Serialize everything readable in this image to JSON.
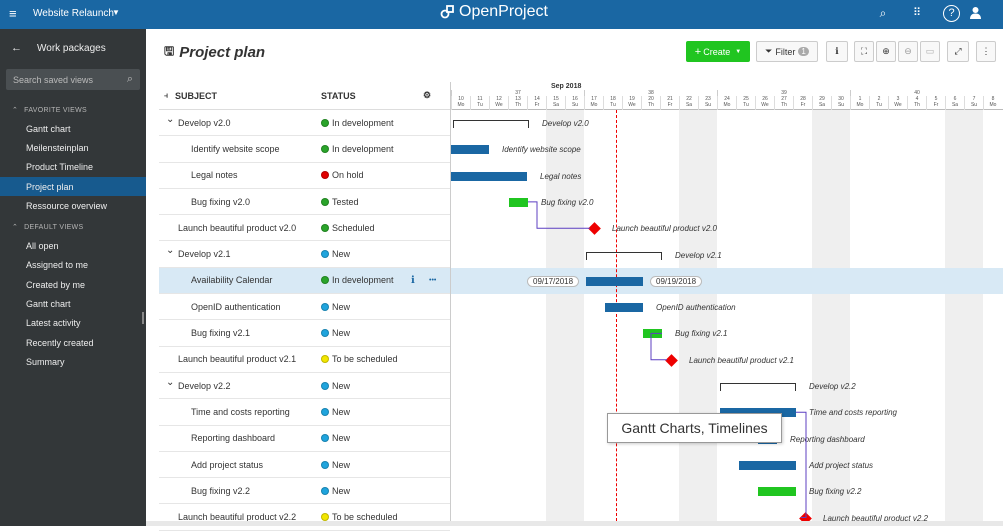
{
  "topbar": {
    "project": "Website Relaunch",
    "logo": "OpenProject",
    "icons": [
      "search-icon",
      "grid-icon",
      "help-icon",
      "user-icon"
    ]
  },
  "sidebar": {
    "back_label": "Work packages",
    "search_placeholder": "Search saved views",
    "favorite_title": "FAVORITE VIEWS",
    "favorites": [
      "Gantt chart",
      "Meilensteinplan",
      "Product Timeline",
      "Project plan",
      "Ressource overview"
    ],
    "default_title": "DEFAULT VIEWS",
    "defaults": [
      "All open",
      "Assigned to me",
      "Created by me",
      "Gantt chart",
      "Latest activity",
      "Recently created",
      "Summary"
    ]
  },
  "toolbar": {
    "title": "Project plan",
    "create": "Create",
    "filter": "Filter",
    "filter_count": "1"
  },
  "table": {
    "col_subject": "SUBJECT",
    "col_status": "STATUS",
    "rows": [
      {
        "subject": "Develop v2.0",
        "status": "In development",
        "color": "#2aa42a",
        "indent": 1,
        "collapsible": true
      },
      {
        "subject": "Identify website scope",
        "status": "In development",
        "color": "#2aa42a",
        "indent": 2
      },
      {
        "subject": "Legal notes",
        "status": "On hold",
        "color": "#e00000",
        "indent": 2
      },
      {
        "subject": "Bug fixing v2.0",
        "status": "Tested",
        "color": "#2aa42a",
        "indent": 2
      },
      {
        "subject": "Launch beautiful product v2.0",
        "status": "Scheduled",
        "color": "#2aa42a",
        "indent": 0
      },
      {
        "subject": "Develop v2.1",
        "status": "New",
        "color": "#1fa4dd",
        "indent": 1,
        "collapsible": true
      },
      {
        "subject": "Availability Calendar",
        "status": "In development",
        "color": "#2aa42a",
        "indent": 2,
        "selected": true
      },
      {
        "subject": "OpenID authentication",
        "status": "New",
        "color": "#1fa4dd",
        "indent": 2
      },
      {
        "subject": "Bug fixing v2.1",
        "status": "New",
        "color": "#1fa4dd",
        "indent": 2
      },
      {
        "subject": "Launch beautiful product v2.1",
        "status": "To be scheduled",
        "color": "#f2e600",
        "indent": 0
      },
      {
        "subject": "Develop v2.2",
        "status": "New",
        "color": "#1fa4dd",
        "indent": 1,
        "collapsible": true
      },
      {
        "subject": "Time and costs reporting",
        "status": "New",
        "color": "#1fa4dd",
        "indent": 2
      },
      {
        "subject": "Reporting dashboard",
        "status": "New",
        "color": "#1fa4dd",
        "indent": 2
      },
      {
        "subject": "Add project status",
        "status": "New",
        "color": "#1fa4dd",
        "indent": 2
      },
      {
        "subject": "Bug fixing v2.2",
        "status": "New",
        "color": "#1fa4dd",
        "indent": 2
      },
      {
        "subject": "Launch beautiful product v2.2",
        "status": "To be scheduled",
        "color": "#f2e600",
        "indent": 0
      }
    ]
  },
  "gantt": {
    "month": "Sep 2018",
    "weeks": [
      "37",
      "38",
      "39",
      "40"
    ],
    "days": [
      "10",
      "11",
      "12",
      "13",
      "14",
      "15",
      "16",
      "17",
      "18",
      "19",
      "20",
      "21",
      "22",
      "23",
      "24",
      "25",
      "26",
      "27",
      "28",
      "29",
      "30",
      "1",
      "2",
      "3",
      "4",
      "5",
      "6",
      "7",
      "8"
    ],
    "weekdays": [
      "Mo",
      "Tu",
      "We",
      "Th",
      "Fr",
      "Sa",
      "Su",
      "Mo",
      "Tu",
      "We",
      "Th",
      "Fr",
      "Sa",
      "Su",
      "Mo",
      "Tu",
      "We",
      "Th",
      "Fr",
      "Sa",
      "Su",
      "Mo",
      "Tu",
      "We",
      "Th",
      "Fr",
      "Sa",
      "Su",
      "Mo"
    ],
    "labels": [
      "Develop v2.0",
      "Identify website scope",
      "Legal notes",
      "Bug fixing v2.0",
      "Launch beautiful product v2.0",
      "Develop v2.1",
      "OpenID authentication",
      "Bug fixing v2.1",
      "Launch beautiful product v2.1",
      "Develop v2.2",
      "Time and costs reporting",
      "Reporting dashboard",
      "Add project status",
      "Bug fixing v2.2",
      "Launch beautiful product v2.2"
    ],
    "start_date": "09/17/2018",
    "end_date": "09/19/2018",
    "blue": "#1a67a3",
    "green": "#20c520",
    "red": "#e00000"
  },
  "tooltip": "Gantt Charts, Timelines"
}
